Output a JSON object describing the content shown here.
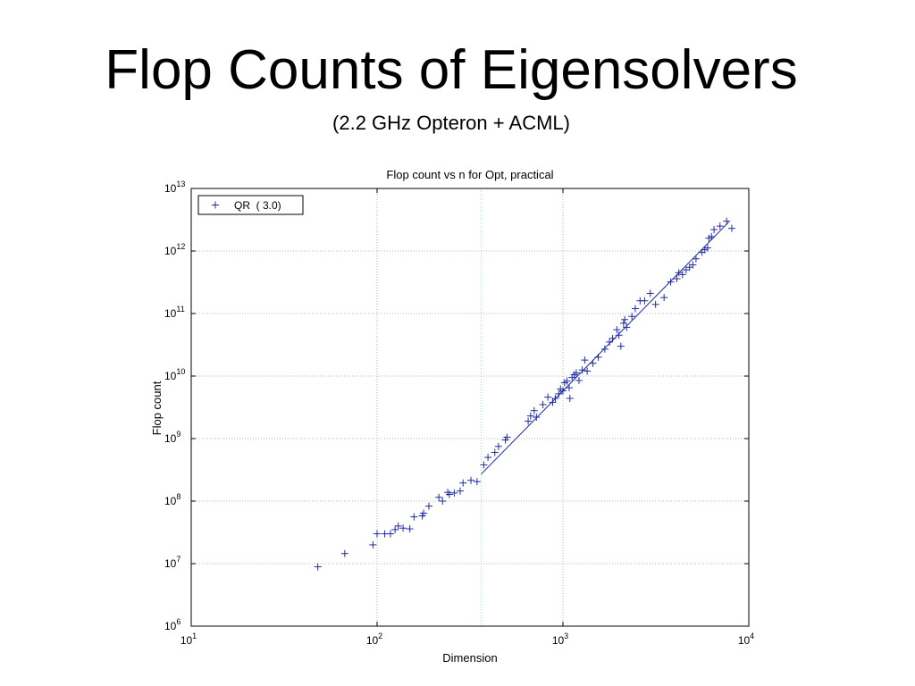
{
  "slide": {
    "title": "Flop Counts of Eigensolvers",
    "subtitle": "(2.2 GHz Opteron + ACML)"
  },
  "chart_data": {
    "type": "scatter",
    "title": "Flop count vs n for Opt, practical",
    "xlabel": "Dimension",
    "ylabel": "Flop count",
    "xscale": "log",
    "yscale": "log",
    "xlim": [
      10,
      10000
    ],
    "ylim": [
      1000000,
      10000000000000
    ],
    "grid": true,
    "legend_position": "top-left",
    "x_ticks": [
      {
        "base": "10",
        "exp": "1"
      },
      {
        "base": "10",
        "exp": "2"
      },
      {
        "base": "10",
        "exp": "3"
      },
      {
        "base": "10",
        "exp": "4"
      }
    ],
    "y_ticks": [
      {
        "base": "10",
        "exp": "6"
      },
      {
        "base": "10",
        "exp": "7"
      },
      {
        "base": "10",
        "exp": "8"
      },
      {
        "base": "10",
        "exp": "9"
      },
      {
        "base": "10",
        "exp": "10"
      },
      {
        "base": "10",
        "exp": "11"
      },
      {
        "base": "10",
        "exp": "12"
      },
      {
        "base": "10",
        "exp": "13"
      }
    ],
    "reference_line_x": 363,
    "colors": {
      "series": "#1f2aa8",
      "grid": "#b5b5b5",
      "reference": "#a9d4d4"
    },
    "series": [
      {
        "name": "QR  ( 3.0)",
        "marker": "plus",
        "points": [
          [
            48,
            8900000.0
          ],
          [
            67,
            14500000.0
          ],
          [
            95,
            20000000.0
          ],
          [
            100,
            30000000.0
          ],
          [
            110,
            30000000.0
          ],
          [
            118,
            30000000.0
          ],
          [
            125,
            35000000.0
          ],
          [
            130,
            40000000.0
          ],
          [
            138,
            37000000.0
          ],
          [
            150,
            36000000.0
          ],
          [
            158,
            56000000.0
          ],
          [
            175,
            58000000.0
          ],
          [
            178,
            64000000.0
          ],
          [
            190,
            83000000.0
          ],
          [
            215,
            115000000.0
          ],
          [
            225,
            100000000.0
          ],
          [
            240,
            138000000.0
          ],
          [
            245,
            128000000.0
          ],
          [
            260,
            135000000.0
          ],
          [
            280,
            145000000.0
          ],
          [
            290,
            195000000.0
          ],
          [
            320,
            215000000.0
          ],
          [
            345,
            205000000.0
          ],
          [
            375,
            380000000.0
          ],
          [
            395,
            500000000.0
          ],
          [
            430,
            600000000.0
          ],
          [
            450,
            750000000.0
          ],
          [
            490,
            950000000.0
          ],
          [
            500,
            1050000000.0
          ],
          [
            650,
            1900000000.0
          ],
          [
            670,
            2300000000.0
          ],
          [
            700,
            2800000000.0
          ],
          [
            720,
            2200000000.0
          ],
          [
            780,
            3500000000.0
          ],
          [
            830,
            4600000000.0
          ],
          [
            880,
            3800000000.0
          ],
          [
            910,
            4400000000.0
          ],
          [
            950,
            5200000000.0
          ],
          [
            970,
            6200000000.0
          ],
          [
            1000,
            5800000000.0
          ],
          [
            1020,
            7800000000.0
          ],
          [
            1050,
            8300000000.0
          ],
          [
            1080,
            6500000000.0
          ],
          [
            1090,
            4400000000.0
          ],
          [
            1120,
            9500000000.0
          ],
          [
            1150,
            10500000000.0
          ],
          [
            1180,
            11200000000.0
          ],
          [
            1220,
            8500000000.0
          ],
          [
            1270,
            12500000000.0
          ],
          [
            1310,
            18000000000.0
          ],
          [
            1350,
            12000000000.0
          ],
          [
            1450,
            16000000000.0
          ],
          [
            1550,
            20000000000.0
          ],
          [
            1680,
            27000000000.0
          ],
          [
            1780,
            35000000000.0
          ],
          [
            1850,
            40000000000.0
          ],
          [
            1950,
            55000000000.0
          ],
          [
            2000,
            45000000000.0
          ],
          [
            2050,
            30000000000.0
          ],
          [
            2120,
            70000000000.0
          ],
          [
            2150,
            80000000000.0
          ],
          [
            2200,
            60000000000.0
          ],
          [
            2350,
            90000000000.0
          ],
          [
            2450,
            120000000000.0
          ],
          [
            2600,
            160000000000.0
          ],
          [
            2750,
            160000000000.0
          ],
          [
            2950,
            210000000000.0
          ],
          [
            3150,
            140000000000.0
          ],
          [
            3500,
            180000000000.0
          ],
          [
            3800,
            320000000000.0
          ],
          [
            4100,
            360000000000.0
          ],
          [
            4200,
            450000000000.0
          ],
          [
            4400,
            420000000000.0
          ],
          [
            4600,
            500000000000.0
          ],
          [
            4800,
            550000000000.0
          ],
          [
            5000,
            600000000000.0
          ],
          [
            5200,
            750000000000.0
          ],
          [
            5600,
            950000000000.0
          ],
          [
            5800,
            1050000000000.0
          ],
          [
            6000,
            1120000000000.0
          ],
          [
            6100,
            1600000000000.0
          ],
          [
            6300,
            1700000000000.0
          ],
          [
            6500,
            2200000000000.0
          ],
          [
            7000,
            2500000000000.0
          ],
          [
            7600,
            3000000000000.0
          ],
          [
            8100,
            2300000000000.0
          ]
        ],
        "fit_line": [
          [
            363,
            270000000.0
          ],
          [
            7800,
            2900000000000.0
          ]
        ]
      }
    ]
  }
}
